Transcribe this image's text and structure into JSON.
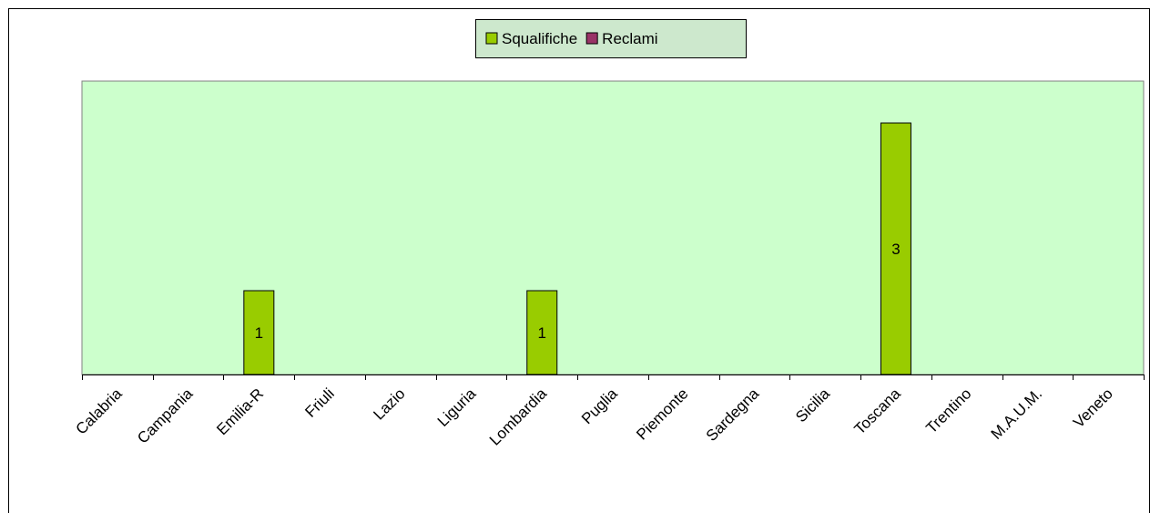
{
  "chart_data": {
    "type": "bar",
    "categories": [
      "Calabria",
      "Campania",
      "Emilia-R",
      "Friuli",
      "Lazio",
      "Liguria",
      "Lombardia",
      "Puglia",
      "Piemonte",
      "Sardegna",
      "Sicilia",
      "Toscana",
      "Trentino",
      "M.A.U.M.",
      "Veneto"
    ],
    "series": [
      {
        "name": "Squalifiche",
        "color": "#99cc00",
        "values": [
          0,
          0,
          1,
          0,
          0,
          0,
          1,
          0,
          0,
          0,
          0,
          3,
          0,
          0,
          0
        ],
        "value_labels": [
          null,
          null,
          "1",
          null,
          null,
          null,
          "1",
          null,
          null,
          null,
          null,
          "3",
          null,
          null,
          null
        ]
      },
      {
        "name": "Reclami",
        "color": "#993366",
        "values": [
          0,
          0,
          0,
          0,
          0,
          0,
          0,
          0,
          0,
          0,
          0,
          0,
          0,
          0,
          0
        ]
      }
    ],
    "ylim": [
      0,
      3.5
    ],
    "legend": "top",
    "plot_background": "#ccffcc"
  }
}
